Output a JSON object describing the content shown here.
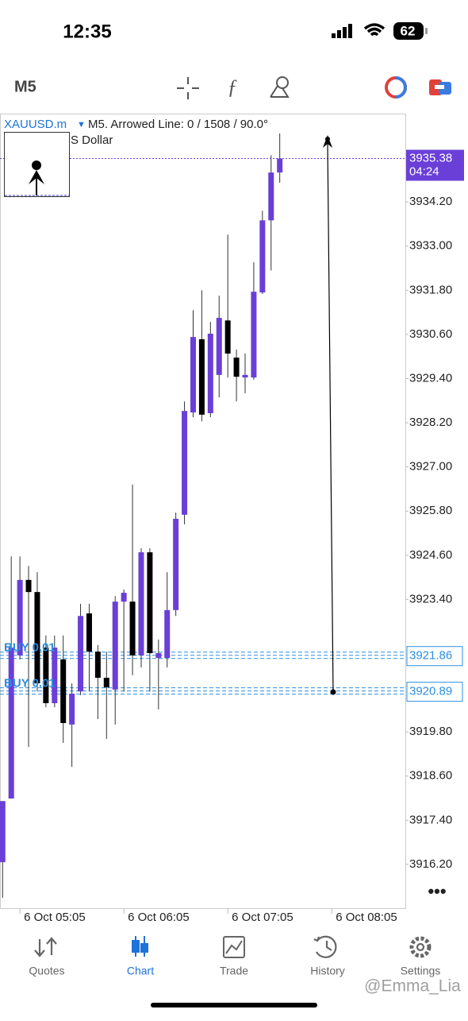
{
  "status_bar": {
    "time": "12:35",
    "battery": "62"
  },
  "toolbar": {
    "timeframe": "M5"
  },
  "chart_data": {
    "type": "candlestick",
    "title": "XAUUSD.m",
    "subtitle": "M5. Arrowed Line: 0 / 1508 / 90.0°",
    "description": "S Dollar",
    "x": [
      0,
      1,
      2,
      3,
      4,
      5,
      6,
      7,
      8,
      9,
      10,
      11,
      12,
      13,
      14,
      15,
      16,
      17,
      18,
      19,
      20,
      21,
      22,
      23,
      24,
      25,
      26,
      27,
      28,
      29,
      30,
      31,
      32
    ],
    "open": [
      3916.26,
      3917.99,
      3921.88,
      3923.93,
      3923.6,
      3922.09,
      3920.58,
      3921.77,
      3920.0,
      3920.9,
      3923.02,
      3921.98,
      3921.27,
      3920.95,
      3923.34,
      3923.34,
      3921.88,
      3924.68,
      3921.81,
      3921.81,
      3923.11,
      3925.7,
      3928.48,
      3930.47,
      3928.46,
      3929.5,
      3930.98,
      3929.97,
      3929.43,
      3929.43,
      3931.74,
      3933.7,
      3935.0
    ],
    "high": [
      3917.92,
      3924.57,
      3924.57,
      3924.31,
      3924.14,
      3922.42,
      3922.42,
      3922.42,
      3921.12,
      3923.28,
      3923.28,
      3922.16,
      3921.98,
      3923.49,
      3923.67,
      3926.52,
      3924.79,
      3924.79,
      3922.31,
      3924.14,
      3925.76,
      3928.78,
      3931.26,
      3931.8,
      3930.94,
      3931.65,
      3933.31,
      3930.19,
      3930.08,
      3932.56,
      3933.96,
      3935.47,
      3936.06
    ],
    "low": [
      3915.29,
      3917.99,
      3921.77,
      3919.39,
      3920.9,
      3920.47,
      3920.47,
      3919.5,
      3918.85,
      3920.8,
      3920.9,
      3920.15,
      3919.61,
      3920.0,
      3920.9,
      3921.34,
      3921.55,
      3920.9,
      3920.41,
      3921.55,
      3922.95,
      3925.44,
      3928.35,
      3928.24,
      3928.35,
      3928.89,
      3929.43,
      3928.78,
      3929.0,
      3929.37,
      3931.7,
      3932.34,
      3934.72
    ],
    "close": [
      3917.92,
      3922.09,
      3923.93,
      3923.6,
      3921.12,
      3920.58,
      3922.09,
      3920.04,
      3920.84,
      3922.95,
      3921.98,
      3921.27,
      3921.01,
      3923.34,
      3923.58,
      3921.88,
      3924.68,
      3921.94,
      3921.94,
      3923.11,
      3925.59,
      3928.52,
      3930.53,
      3928.42,
      3930.62,
      3931.05,
      3930.08,
      3929.45,
      3929.5,
      3931.76,
      3933.7,
      3935.0,
      3935.38
    ],
    "up_color": "#6a3fd8",
    "down_color": "#000000",
    "xlim": [
      -0.3,
      46.5
    ],
    "xticks": [
      {
        "value": 2,
        "label": "6 Oct 05:05"
      },
      {
        "value": 14,
        "label": "6 Oct 06:05"
      },
      {
        "value": 26,
        "label": "6 Oct 07:05"
      },
      {
        "value": 38,
        "label": "6 Oct 08:05"
      }
    ],
    "ylim": [
      3915.01,
      3936.6
    ],
    "yticks": [
      {
        "value": 3934.2,
        "label": "3934.20"
      },
      {
        "value": 3933,
        "label": "3933.00"
      },
      {
        "value": 3931.8,
        "label": "3931.80"
      },
      {
        "value": 3930.6,
        "label": "3930.60"
      },
      {
        "value": 3929.4,
        "label": "3929.40"
      },
      {
        "value": 3928.2,
        "label": "3928.20"
      },
      {
        "value": 3927,
        "label": "3927.00"
      },
      {
        "value": 3925.8,
        "label": "3925.80"
      },
      {
        "value": 3924.6,
        "label": "3924.60"
      },
      {
        "value": 3923.4,
        "label": "3923.40"
      },
      {
        "value": 3919.8,
        "label": "3919.80"
      },
      {
        "value": 3918.6,
        "label": "3918.60"
      },
      {
        "value": 3917.4,
        "label": "3917.40"
      },
      {
        "value": 3916.2,
        "label": "3916.20"
      }
    ],
    "current_price": {
      "value": 3935.38,
      "timer": "04:24",
      "color": "#6a3fd8"
    },
    "orders": [
      {
        "label": "BUY 0.01",
        "value": 3921.86
      },
      {
        "label": "BUY 0.01",
        "value": 3920.89
      }
    ],
    "order_color": "#2b8fe0"
  },
  "tab_bar": {
    "tabs": [
      "Quotes",
      "Chart",
      "Trade",
      "History",
      "Settings"
    ],
    "active": "Chart"
  },
  "watermark": "@Emma_Lia"
}
